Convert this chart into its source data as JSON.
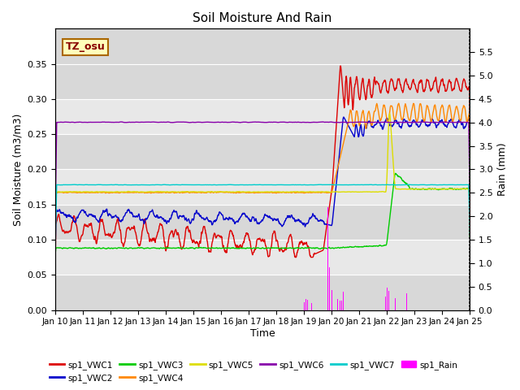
{
  "title": "Soil Moisture And Rain",
  "xlabel": "Time",
  "ylabel_left": "Soil Moisture (m3/m3)",
  "ylabel_right": "Rain (mm)",
  "annotation": "TZ_osu",
  "ylim_left": [
    0,
    0.4
  ],
  "ylim_right": [
    0.0,
    6.0
  ],
  "yticks_left": [
    0.0,
    0.05,
    0.1,
    0.15,
    0.2,
    0.25,
    0.3,
    0.35
  ],
  "yticks_right": [
    0.0,
    0.5,
    1.0,
    1.5,
    2.0,
    2.5,
    3.0,
    3.5,
    4.0,
    4.5,
    5.0,
    5.5
  ],
  "xtick_labels": [
    "Jan 10",
    "Jan 11",
    "Jan 12",
    "Jan 13",
    "Jan 14",
    "Jan 15",
    "Jan 16",
    "Jan 17",
    "Jan 18",
    "Jan 19",
    "Jan 20",
    "Jan 21",
    "Jan 22",
    "Jan 23",
    "Jan 24",
    "Jan 25"
  ],
  "colors": {
    "VWC1": "#dd0000",
    "VWC2": "#0000cc",
    "VWC3": "#00cc00",
    "VWC4": "#ff8800",
    "VWC5": "#dddd00",
    "VWC6": "#8800aa",
    "VWC7": "#00cccc",
    "Rain": "#ff00ff"
  },
  "band_colors": [
    "#d8d8d8",
    "#e8e8e8"
  ],
  "plot_bg": "#d8d8d8"
}
